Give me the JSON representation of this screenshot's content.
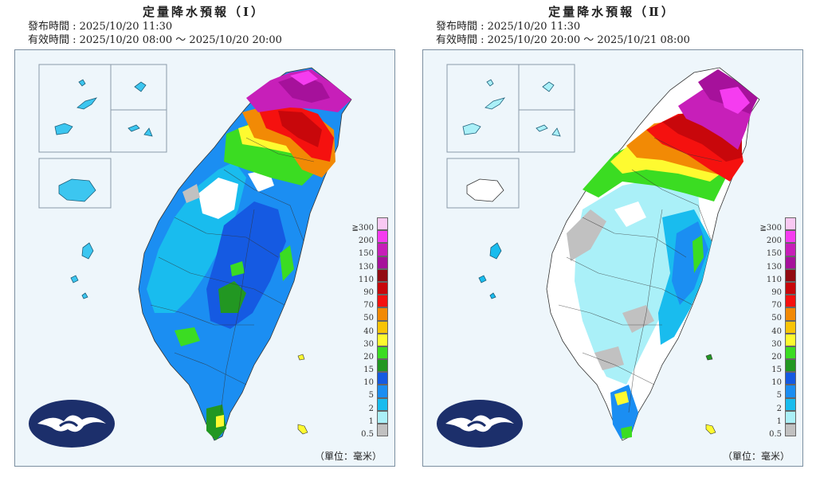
{
  "panels": [
    {
      "title": "定量降水預報（Ⅰ）",
      "issue_time": "發布時間 : 2025/10/20 11:30",
      "valid_time": "有效時間 : 2025/10/20 08:00 ～ 2025/10/20 20:00",
      "unit_label": "（單位：毫米）",
      "period": "I"
    },
    {
      "title": "定量降水預報（Ⅱ）",
      "issue_time": "發布時間 : 2025/10/20 11:30",
      "valid_time": "有效時間 : 2025/10/20 20:00 ～ 2025/10/21 08:00",
      "unit_label": "（單位：毫米）",
      "period": "II"
    }
  ],
  "legend": [
    {
      "label": "≧300",
      "color": "#f9c9f3"
    },
    {
      "label": "200",
      "color": "#f53cf0"
    },
    {
      "label": "150",
      "color": "#c71fb9"
    },
    {
      "label": "130",
      "color": "#a6119b"
    },
    {
      "label": "110",
      "color": "#920b12"
    },
    {
      "label": "90",
      "color": "#c8070b"
    },
    {
      "label": "70",
      "color": "#f5110f"
    },
    {
      "label": "50",
      "color": "#f28a05"
    },
    {
      "label": "40",
      "color": "#f8c406"
    },
    {
      "label": "30",
      "color": "#fefa30"
    },
    {
      "label": "20",
      "color": "#3bdc22"
    },
    {
      "label": "15",
      "color": "#229722"
    },
    {
      "label": "10",
      "color": "#155ae2"
    },
    {
      "label": "5",
      "color": "#1b8ef2"
    },
    {
      "label": "2",
      "color": "#19bcee"
    },
    {
      "label": "1",
      "color": "#aaf0f8"
    },
    {
      "label": "0.5",
      "color": "#c1c1c1"
    }
  ],
  "icons": {
    "logo": "cwa-cloud-logo-icon"
  }
}
